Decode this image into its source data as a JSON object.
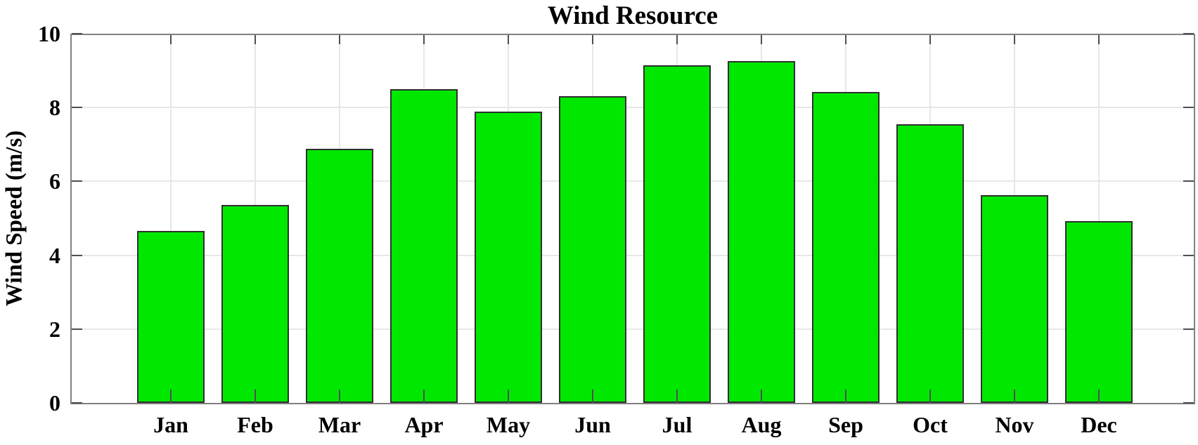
{
  "chart_data": {
    "type": "bar",
    "title": "Wind Resource",
    "ylabel": "Wind Speed (m/s)",
    "xlabel": "",
    "categories": [
      "Jan",
      "Feb",
      "Mar",
      "Apr",
      "May",
      "Jun",
      "Jul",
      "Aug",
      "Sep",
      "Oct",
      "Nov",
      "Dec"
    ],
    "values": [
      4.66,
      5.36,
      6.88,
      8.49,
      7.89,
      8.31,
      9.15,
      9.26,
      8.42,
      7.55,
      5.63,
      4.92
    ],
    "ylim": [
      0,
      10
    ],
    "yticks": [
      0,
      2,
      4,
      6,
      8,
      10
    ],
    "grid": "on",
    "legend": "none",
    "colors": {
      "bar_fill": "#00e800",
      "bar_edge": "#2f2f2f",
      "grid_line": "#e7e7e7",
      "axis_line": "#808080",
      "tick_mark": "#4f4f4f",
      "text": "#000000",
      "background": "#ffffff"
    }
  }
}
